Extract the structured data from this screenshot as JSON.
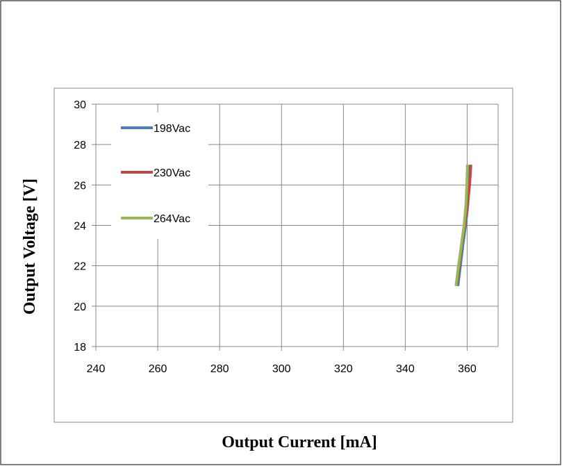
{
  "chart_data": {
    "type": "line",
    "title": "",
    "xlabel": "Output Current [mA]",
    "ylabel": "Output Voltage [V]",
    "xlim": [
      240,
      370
    ],
    "ylim": [
      18,
      30
    ],
    "xticks": [
      240,
      260,
      280,
      300,
      320,
      340,
      360
    ],
    "yticks": [
      18,
      20,
      22,
      24,
      26,
      28,
      30
    ],
    "grid": true,
    "legend_position": "top-left",
    "series": [
      {
        "name": "198Vac",
        "color": "#4a7ebb",
        "points": [
          [
            357.0,
            21.0
          ],
          [
            357.8,
            22.0
          ],
          [
            358.6,
            23.0
          ],
          [
            359.5,
            24.0
          ],
          [
            360.2,
            25.0
          ],
          [
            360.6,
            26.0
          ],
          [
            360.9,
            27.0
          ]
        ]
      },
      {
        "name": "230Vac",
        "color": "#be4b48",
        "points": [
          [
            356.6,
            21.0
          ],
          [
            357.4,
            22.0
          ],
          [
            358.2,
            23.0
          ],
          [
            359.2,
            24.0
          ],
          [
            360.1,
            25.0
          ],
          [
            360.8,
            26.0
          ],
          [
            361.2,
            27.0
          ]
        ]
      },
      {
        "name": "264Vac",
        "color": "#98b954",
        "points": [
          [
            356.4,
            21.0
          ],
          [
            357.2,
            22.0
          ],
          [
            358.1,
            23.0
          ],
          [
            359.0,
            24.0
          ],
          [
            359.6,
            25.0
          ],
          [
            359.9,
            26.0
          ],
          [
            360.1,
            27.0
          ]
        ]
      }
    ]
  }
}
